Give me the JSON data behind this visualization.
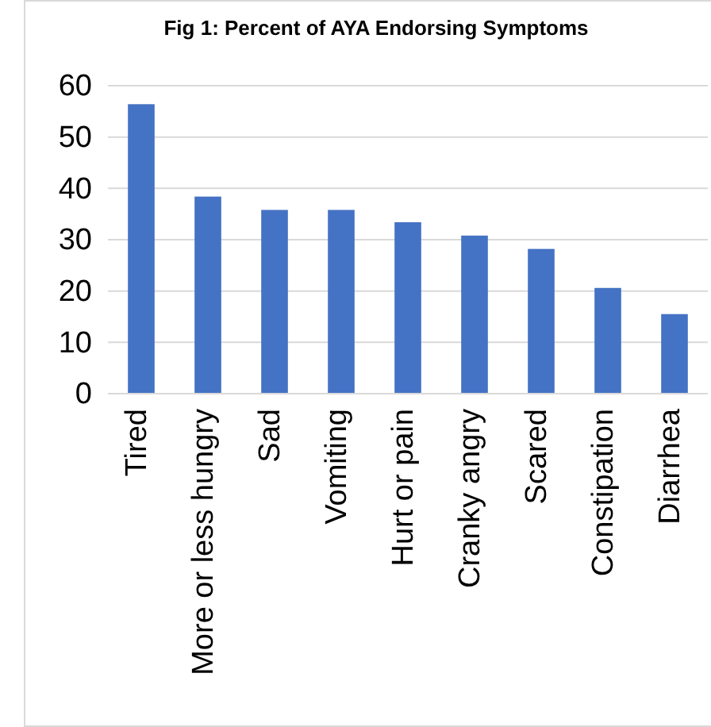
{
  "chart_data": {
    "type": "bar",
    "title": "Fig 1: Percent of AYA Endorsing Symptoms",
    "categories": [
      "Tired",
      "More or less hungry",
      "Sad",
      "Vomiting",
      "Hurt or pain",
      "Cranky angry",
      "Scared",
      "Constipation",
      "Diarrhea"
    ],
    "values": [
      56.4,
      38.4,
      35.8,
      35.8,
      33.4,
      30.8,
      28.2,
      20.6,
      15.5
    ],
    "color": "#4472c4",
    "ylim": [
      0,
      60
    ],
    "yticks": [
      0,
      10,
      20,
      30,
      40,
      50,
      60
    ],
    "grid": "y"
  }
}
